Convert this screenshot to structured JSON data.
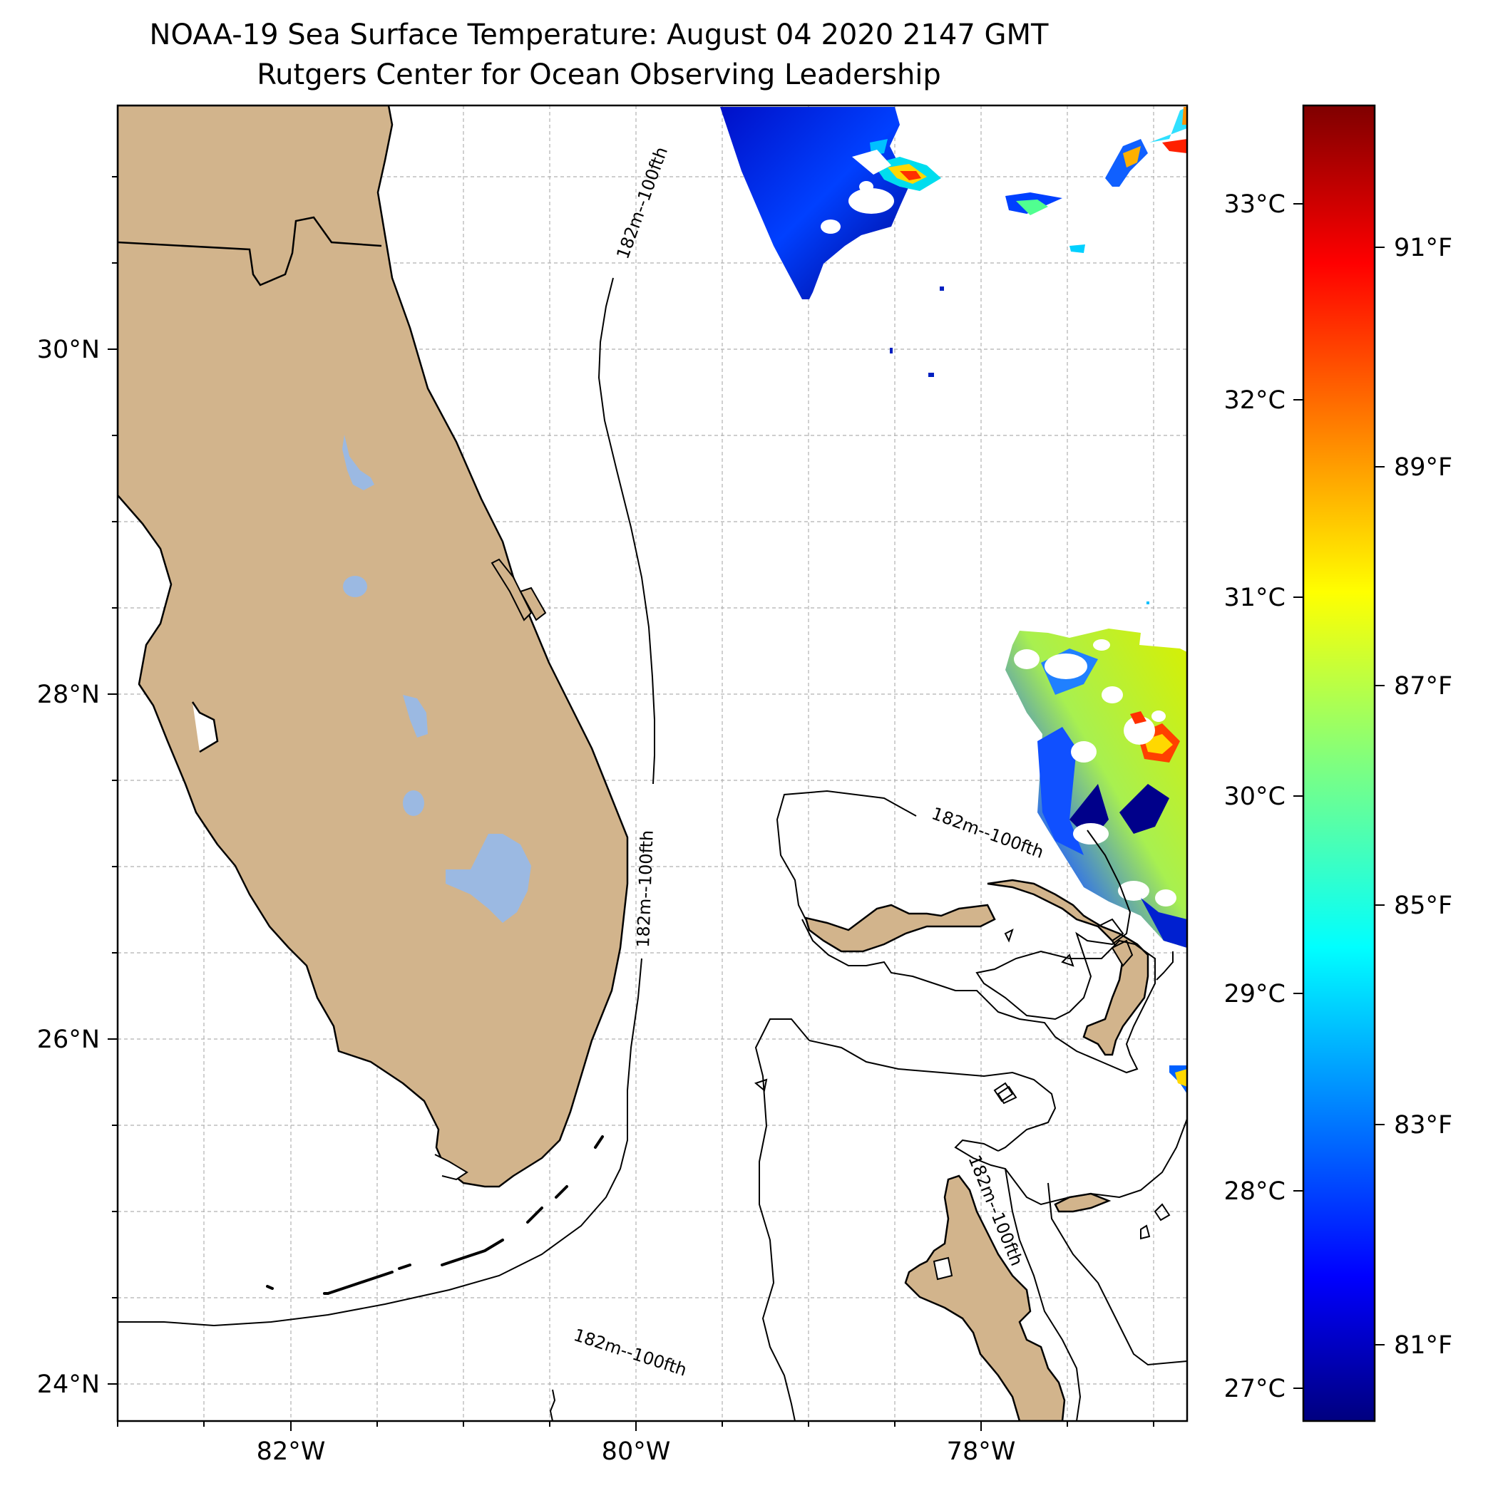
{
  "title": {
    "line1": "NOAA-19 Sea Surface Temperature: August 04 2020 2147 GMT",
    "line2": "Rutgers Center for Ocean Observing Leadership"
  },
  "map": {
    "lat_labels": [
      "30°N",
      "28°N",
      "26°N",
      "24°N"
    ],
    "lon_labels": [
      "82°W",
      "80°W",
      "78°W"
    ],
    "grid": true,
    "land_color": "#d2b48c",
    "lake_color": "#9bb9e2",
    "contour_label": "182m--100fth"
  },
  "colorbar": {
    "colormap": "jet",
    "celsius_labels": [
      "33°C",
      "32°C",
      "31°C",
      "30°C",
      "29°C",
      "28°C",
      "27°C"
    ],
    "fahrenheit_labels": [
      "91°F",
      "89°F",
      "87°F",
      "85°F",
      "83°F",
      "81°F"
    ],
    "colors": [
      "#00007f",
      "#0000ff",
      "#007fff",
      "#00ffff",
      "#7fff7f",
      "#ffff00",
      "#ff7f00",
      "#ff0000",
      "#7f0000"
    ]
  }
}
